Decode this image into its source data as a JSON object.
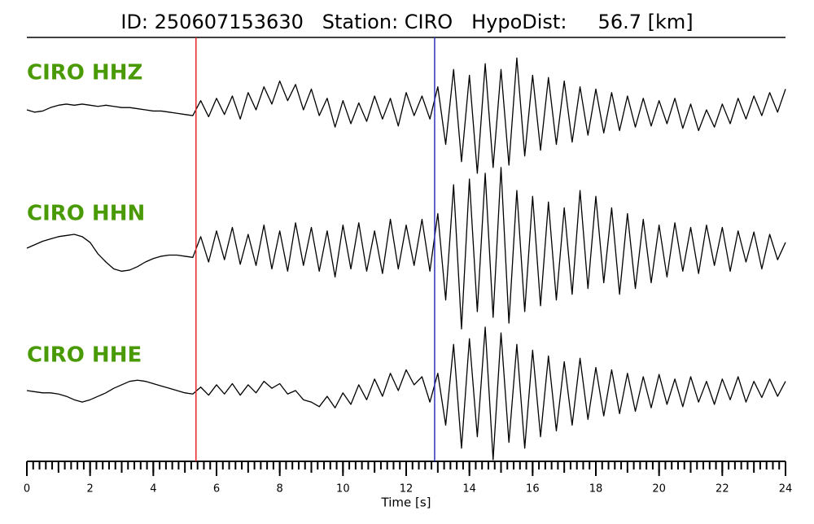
{
  "chart_data": {
    "type": "line",
    "title": "ID: 250607153630   Station: CIRO   HypoDist:     56.7 [km]",
    "xlabel": "Time [s]",
    "xlim": [
      0,
      24
    ],
    "xticks": [
      0,
      2,
      4,
      6,
      8,
      10,
      12,
      14,
      16,
      18,
      20,
      22,
      24
    ],
    "xminor_step": 0.2,
    "ylim": [
      -60,
      60
    ],
    "label_color": "#4a9a06",
    "vlines": [
      {
        "color": "#e8262a",
        "x": 5.35
      },
      {
        "color": "#2c35b8",
        "x": 12.9
      }
    ],
    "x": [
      0,
      0.25,
      0.5,
      0.75,
      1,
      1.25,
      1.5,
      1.75,
      2,
      2.25,
      2.5,
      2.75,
      3,
      3.25,
      3.5,
      3.75,
      4,
      4.25,
      4.5,
      4.75,
      5,
      5.25,
      5.5,
      5.75,
      6,
      6.25,
      6.5,
      6.75,
      7,
      7.25,
      7.5,
      7.75,
      8,
      8.25,
      8.5,
      8.75,
      9,
      9.25,
      9.5,
      9.75,
      10,
      10.25,
      10.5,
      10.75,
      11,
      11.25,
      11.5,
      11.75,
      12,
      12.25,
      12.5,
      12.75,
      13,
      13.25,
      13.5,
      13.75,
      14,
      14.25,
      14.5,
      14.75,
      15,
      15.25,
      15.5,
      15.75,
      16,
      16.25,
      16.5,
      16.75,
      17,
      17.25,
      17.5,
      17.75,
      18,
      18.25,
      18.5,
      18.75,
      19,
      19.25,
      19.5,
      19.75,
      20,
      20.25,
      20.5,
      20.75,
      21,
      21.25,
      21.5,
      21.75,
      22,
      22.25,
      22.5,
      22.75,
      23,
      23.25,
      23.5,
      23.75,
      24
    ],
    "series": [
      {
        "name": "CIRO HHZ",
        "color": "#000000",
        "values": [
          0,
          -2,
          -1,
          2,
          4,
          5,
          4,
          5,
          4,
          3,
          4,
          3,
          2,
          2,
          1,
          0,
          -1,
          -1,
          -2,
          -3,
          -4,
          -5,
          8,
          -6,
          10,
          -4,
          12,
          -8,
          15,
          0,
          20,
          5,
          25,
          8,
          22,
          0,
          18,
          -5,
          10,
          -15,
          8,
          -12,
          6,
          -10,
          12,
          -8,
          10,
          -14,
          15,
          -5,
          12,
          -8,
          20,
          -30,
          35,
          -45,
          30,
          -55,
          40,
          -50,
          35,
          -48,
          45,
          -40,
          30,
          -35,
          28,
          -30,
          25,
          -28,
          20,
          -22,
          18,
          -20,
          15,
          -18,
          12,
          -15,
          10,
          -14,
          8,
          -12,
          10,
          -16,
          5,
          -18,
          0,
          -15,
          5,
          -12,
          10,
          -8,
          12,
          -5,
          15,
          -2,
          18
        ]
      },
      {
        "name": "CIRO HHN",
        "color": "#000000",
        "values": [
          0,
          3,
          6,
          8,
          10,
          11,
          12,
          10,
          5,
          -5,
          -12,
          -18,
          -20,
          -19,
          -16,
          -12,
          -9,
          -7,
          -6,
          -6,
          -7,
          -8,
          10,
          -12,
          15,
          -10,
          18,
          -14,
          12,
          -15,
          20,
          -18,
          15,
          -20,
          22,
          -15,
          18,
          -20,
          15,
          -25,
          20,
          -18,
          22,
          -20,
          15,
          -22,
          25,
          -18,
          20,
          -15,
          25,
          -20,
          30,
          -45,
          55,
          -70,
          60,
          -55,
          65,
          -60,
          70,
          -65,
          50,
          -55,
          45,
          -50,
          40,
          -45,
          35,
          -40,
          50,
          -35,
          45,
          -30,
          35,
          -40,
          30,
          -35,
          25,
          -30,
          20,
          -25,
          22,
          -20,
          18,
          -22,
          20,
          -15,
          18,
          -20,
          15,
          -12,
          14,
          -18,
          12,
          -10,
          5
        ]
      },
      {
        "name": "CIRO HHE",
        "color": "#000000",
        "values": [
          0,
          -1,
          -2,
          -2,
          -3,
          -5,
          -8,
          -10,
          -8,
          -5,
          -2,
          2,
          5,
          8,
          9,
          8,
          6,
          4,
          2,
          0,
          -2,
          -3,
          3,
          -4,
          5,
          -3,
          6,
          -4,
          5,
          -2,
          8,
          2,
          6,
          -3,
          0,
          -8,
          -10,
          -14,
          -5,
          -15,
          -2,
          -12,
          5,
          -8,
          10,
          -5,
          15,
          0,
          18,
          5,
          12,
          -10,
          15,
          -30,
          40,
          -50,
          45,
          -40,
          55,
          -60,
          50,
          -45,
          40,
          -50,
          35,
          -40,
          30,
          -35,
          25,
          -30,
          28,
          -25,
          20,
          -22,
          18,
          -20,
          15,
          -18,
          12,
          -15,
          14,
          -12,
          10,
          -14,
          12,
          -10,
          8,
          -12,
          10,
          -8,
          12,
          -10,
          8,
          -6,
          10,
          -5,
          8
        ]
      }
    ]
  }
}
